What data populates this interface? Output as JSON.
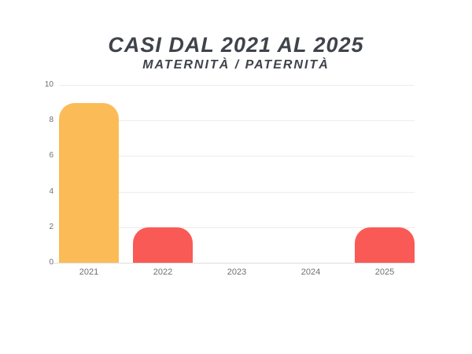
{
  "page": {
    "background_color": "#ffffff"
  },
  "chart_data": {
    "type": "bar",
    "title": "CASI DAL 2021 AL 2025",
    "subtitle": "MATERNITÀ / PATERNITÀ",
    "categories": [
      "2021",
      "2022",
      "2023",
      "2024",
      "2025"
    ],
    "values": [
      9,
      2,
      0,
      0,
      2
    ],
    "bar_colors": [
      "#FBBC57",
      "#FA5A55",
      "#FA5A55",
      "#FA5A55",
      "#FA5A55"
    ],
    "xlabel": "",
    "ylabel": "",
    "ylim": [
      0,
      10
    ],
    "yticks": [
      0,
      2,
      4,
      6,
      8,
      10
    ],
    "grid": true,
    "legend_position": "none",
    "title_color": "#3f434a",
    "gridline_color": "#ececec",
    "axis_line_color": "#dedede",
    "tick_label_color": "#6f6f6f"
  }
}
